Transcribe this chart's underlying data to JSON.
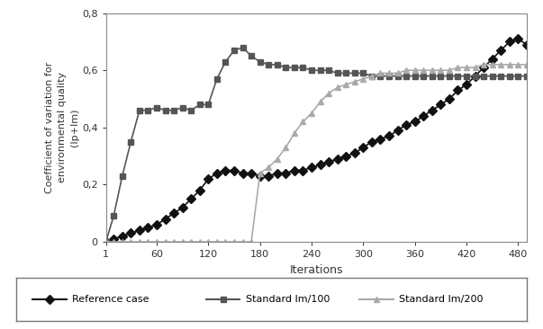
{
  "xlabel": "Iterations",
  "ylabel": "Coefficient of variation for\nenvironmental quality\n(Ip+Im)",
  "ylim": [
    0,
    0.8
  ],
  "yticks": [
    0,
    0.2,
    0.4,
    0.6,
    0.8
  ],
  "ytick_labels": [
    "0",
    "0,2",
    "0,4",
    "0,6",
    "0,8"
  ],
  "xticks": [
    1,
    60,
    120,
    180,
    240,
    300,
    360,
    420,
    480
  ],
  "xlim": [
    1,
    490
  ],
  "background_color": "#ffffff",
  "fig_bg": "#d8d8d8",
  "plot_bg": "#f0f0f0",
  "reference_case": {
    "x": [
      1,
      10,
      20,
      30,
      40,
      50,
      60,
      70,
      80,
      90,
      100,
      110,
      120,
      130,
      140,
      150,
      160,
      170,
      180,
      190,
      200,
      210,
      220,
      230,
      240,
      250,
      260,
      270,
      280,
      290,
      300,
      310,
      320,
      330,
      340,
      350,
      360,
      370,
      380,
      390,
      400,
      410,
      420,
      430,
      440,
      450,
      460,
      470,
      480,
      490
    ],
    "y": [
      0.0,
      0.01,
      0.02,
      0.03,
      0.04,
      0.05,
      0.06,
      0.08,
      0.1,
      0.12,
      0.15,
      0.18,
      0.22,
      0.24,
      0.25,
      0.25,
      0.24,
      0.24,
      0.23,
      0.23,
      0.24,
      0.24,
      0.25,
      0.25,
      0.26,
      0.27,
      0.28,
      0.29,
      0.3,
      0.31,
      0.33,
      0.35,
      0.36,
      0.37,
      0.39,
      0.41,
      0.42,
      0.44,
      0.46,
      0.48,
      0.5,
      0.53,
      0.55,
      0.58,
      0.61,
      0.64,
      0.67,
      0.7,
      0.71,
      0.69
    ],
    "color": "#111111",
    "marker": "D",
    "marker_size": 5,
    "linewidth": 1.2,
    "label": "Reference case"
  },
  "standard_im100": {
    "x": [
      1,
      10,
      20,
      30,
      40,
      50,
      60,
      70,
      80,
      90,
      100,
      110,
      120,
      130,
      140,
      150,
      160,
      170,
      180,
      190,
      200,
      210,
      220,
      230,
      240,
      250,
      260,
      270,
      280,
      290,
      300,
      310,
      320,
      330,
      340,
      350,
      360,
      370,
      380,
      390,
      400,
      410,
      420,
      430,
      440,
      450,
      460,
      470,
      480,
      490
    ],
    "y": [
      0.0,
      0.09,
      0.23,
      0.35,
      0.46,
      0.46,
      0.47,
      0.46,
      0.46,
      0.47,
      0.46,
      0.48,
      0.48,
      0.57,
      0.63,
      0.67,
      0.68,
      0.65,
      0.63,
      0.62,
      0.62,
      0.61,
      0.61,
      0.61,
      0.6,
      0.6,
      0.6,
      0.59,
      0.59,
      0.59,
      0.59,
      0.58,
      0.58,
      0.58,
      0.58,
      0.58,
      0.58,
      0.58,
      0.58,
      0.58,
      0.58,
      0.58,
      0.58,
      0.58,
      0.58,
      0.58,
      0.58,
      0.58,
      0.58,
      0.58
    ],
    "color": "#555555",
    "marker": "s",
    "marker_size": 5,
    "linewidth": 1.2,
    "label": "Standard Im/100"
  },
  "standard_im200": {
    "x": [
      1,
      10,
      20,
      30,
      40,
      50,
      60,
      70,
      80,
      90,
      100,
      110,
      120,
      130,
      140,
      150,
      160,
      170,
      180,
      190,
      200,
      210,
      220,
      230,
      240,
      250,
      260,
      270,
      280,
      290,
      300,
      310,
      320,
      330,
      340,
      350,
      360,
      370,
      380,
      390,
      400,
      410,
      420,
      430,
      440,
      450,
      460,
      470,
      480,
      490
    ],
    "y": [
      0.0,
      0.0,
      0.0,
      0.0,
      0.0,
      0.0,
      0.0,
      0.0,
      0.0,
      0.0,
      0.0,
      0.0,
      0.0,
      0.0,
      0.0,
      0.0,
      0.0,
      0.0,
      0.24,
      0.26,
      0.29,
      0.33,
      0.38,
      0.42,
      0.45,
      0.49,
      0.52,
      0.54,
      0.55,
      0.56,
      0.57,
      0.58,
      0.59,
      0.59,
      0.59,
      0.6,
      0.6,
      0.6,
      0.6,
      0.6,
      0.6,
      0.61,
      0.61,
      0.61,
      0.62,
      0.62,
      0.62,
      0.62,
      0.62,
      0.62
    ],
    "color": "#aaaaaa",
    "marker": "^",
    "marker_size": 5,
    "linewidth": 1.2,
    "label": "Standard Im/200"
  }
}
